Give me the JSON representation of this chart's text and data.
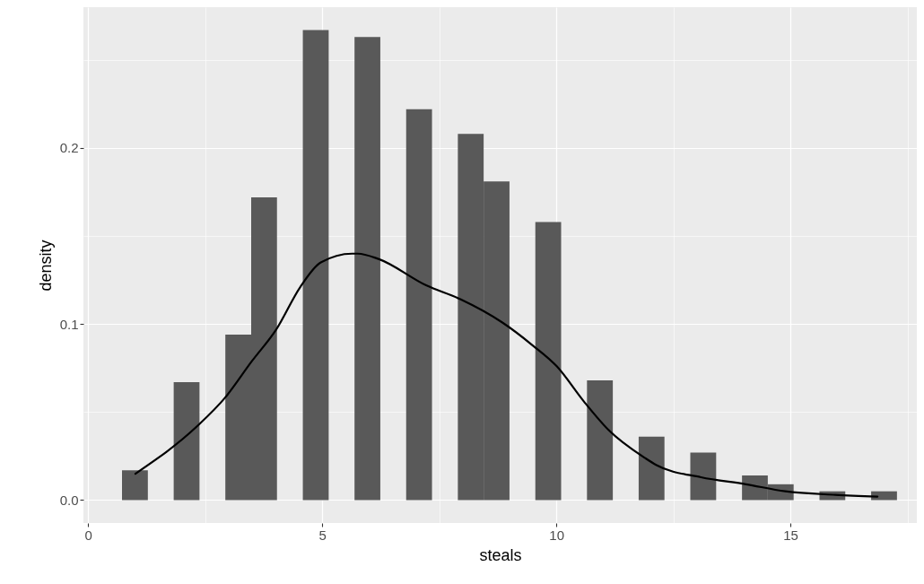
{
  "chart_data": {
    "type": "histogram",
    "xlabel": "steals",
    "ylabel": "density",
    "bins": [
      0.724,
      1.276,
      1.828,
      2.379,
      2.931,
      3.483,
      4.034,
      4.586,
      5.138,
      5.69,
      6.241,
      6.793,
      7.345,
      7.897,
      8.448,
      9.0,
      9.552,
      10.103,
      10.655,
      11.207,
      11.759,
      12.31,
      12.862,
      13.414,
      13.966,
      14.517,
      15.069,
      15.621,
      16.172,
      16.724,
      17.276
    ],
    "series": [
      {
        "color": "#595959",
        "values": [
          0.017,
          0,
          0.067,
          0,
          0.094,
          0.172,
          0,
          0.267,
          0,
          0.263,
          0,
          0.222,
          0,
          0.208,
          0.181,
          0,
          0.158,
          0,
          0.068,
          0,
          0.036,
          0,
          0.027,
          0,
          0.014,
          0.009,
          0,
          0.005,
          0,
          0.005
        ]
      },
      {
        "type": "line",
        "color": "#000000",
        "x": [
          1.01,
          2.33,
          2.92,
          3.5,
          4.02,
          4.53,
          4.97,
          5.64,
          5.76,
          6.2,
          7.22,
          7.96,
          8.84,
          9.49,
          10.01,
          10.59,
          11.11,
          11.89,
          12.13,
          13.09,
          14.05,
          14.89,
          15.96,
          16.86
        ],
        "values": [
          0.015,
          0.042,
          0.058,
          0.079,
          0.097,
          0.121,
          0.135,
          0.14,
          0.14,
          0.137,
          0.122,
          0.114,
          0.101,
          0.088,
          0.076,
          0.056,
          0.04,
          0.024,
          0.02,
          0.013,
          0.009,
          0.005,
          0.003,
          0.002
        ]
      }
    ],
    "xlim": [
      -0.1,
      17.7
    ],
    "ylim": [
      -0.013,
      0.28
    ],
    "xticks": [
      0,
      5,
      10,
      15,
      {
        "value": 2.5,
        "label": null
      },
      {
        "value": 7.5,
        "label": null
      },
      {
        "value": 12.5,
        "label": null
      },
      {
        "value": 17.5,
        "label": null
      }
    ],
    "yticks": [
      {
        "value": 0,
        "label": "0.0"
      },
      {
        "value": 0.1,
        "label": "0.1"
      },
      {
        "value": 0.2,
        "label": "0.2"
      },
      {
        "value": 0.05,
        "label": null
      },
      {
        "value": 0.15,
        "label": null
      },
      {
        "value": 0.25,
        "label": null
      }
    ],
    "grid": true
  }
}
